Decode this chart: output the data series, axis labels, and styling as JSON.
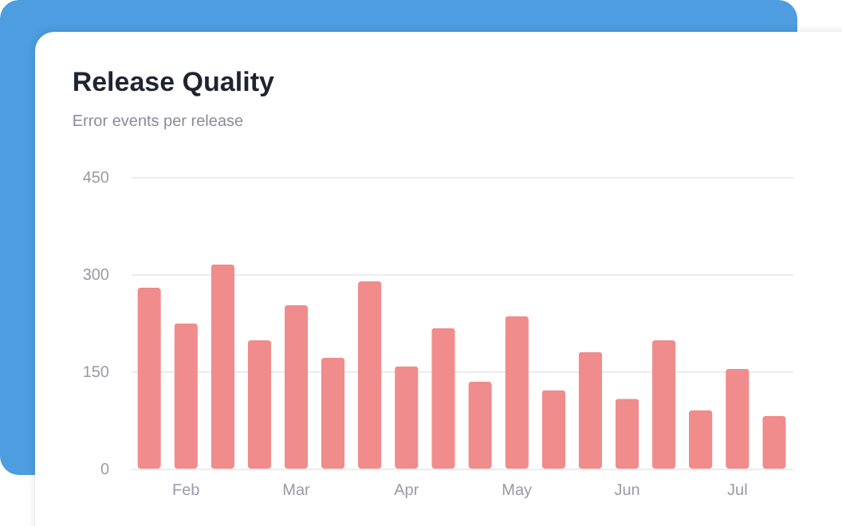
{
  "chart_data": {
    "type": "bar",
    "title": "Release Quality",
    "subtitle": "Error events per release",
    "categories": [
      null,
      "Feb",
      null,
      null,
      "Mar",
      null,
      null,
      "Apr",
      null,
      null,
      "May",
      null,
      null,
      "Jun",
      null,
      null,
      "Jul",
      null
    ],
    "values": [
      279,
      224,
      315,
      198,
      252,
      171,
      289,
      158,
      217,
      134,
      235,
      121,
      180,
      108,
      198,
      90,
      154,
      81
    ],
    "color": "#f08c8c",
    "ylim": [
      0,
      450
    ],
    "yticks": [
      0,
      150,
      300,
      450
    ],
    "grid": "y"
  }
}
